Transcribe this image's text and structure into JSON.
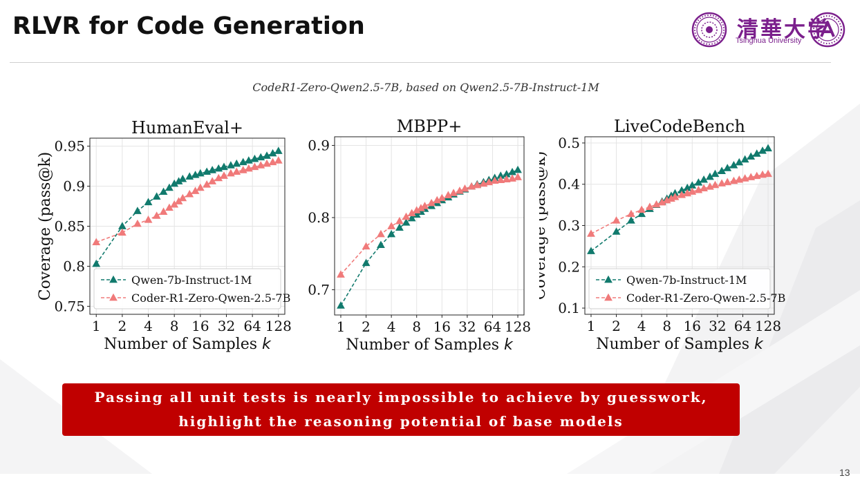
{
  "slide": {
    "title": "RLVR for Code Generation",
    "subtitle": "CodeR1-Zero-Qwen2.5-7B, based on Qwen2.5-7B-Instruct-1M",
    "callout_line1": "Passing all unit tests is nearly impossible to achieve by guesswork,",
    "callout_line2": "highlight the reasoning potential of base models",
    "page_number": "13",
    "logo_text_cn": "清華大学",
    "logo_text_en": "Tsinghua University"
  },
  "colors": {
    "qwen": "#117a6d",
    "coder": "#f07a7a",
    "callout_bg": "#c00000",
    "logo": "#7b1f8c"
  },
  "chart_data": [
    {
      "type": "line",
      "title": "HumanEval+",
      "xlabel": "Number of Samples",
      "xlabel_var": "k",
      "ylabel": "Coverage (pass@k)",
      "x_scale": "log2",
      "x": [
        1,
        2,
        3,
        4,
        5,
        6,
        7,
        8,
        9,
        10,
        12,
        14,
        16,
        19,
        22,
        26,
        30,
        36,
        42,
        50,
        58,
        68,
        80,
        94,
        110,
        128
      ],
      "xticks": [
        1,
        2,
        4,
        8,
        16,
        32,
        64,
        128
      ],
      "ylim": [
        0.74,
        0.96
      ],
      "yticks": [
        0.75,
        0.8,
        0.85,
        0.9,
        0.95
      ],
      "ytick_labels": [
        "0.75",
        "0.8",
        "0.85",
        "0.9",
        "0.95"
      ],
      "grid": true,
      "legend": "bottom-left",
      "series": [
        {
          "name": "Qwen-7b-Instruct-1M",
          "color": "#117a6d",
          "style": "dashed",
          "marker": "triangle",
          "values": [
            0.803,
            0.85,
            0.869,
            0.88,
            0.887,
            0.893,
            0.898,
            0.903,
            0.906,
            0.909,
            0.912,
            0.914,
            0.916,
            0.918,
            0.92,
            0.922,
            0.924,
            0.926,
            0.928,
            0.93,
            0.932,
            0.934,
            0.936,
            0.938,
            0.941,
            0.944
          ]
        },
        {
          "name": "Coder-R1-Zero-Qwen-2.5-7B",
          "color": "#f07a7a",
          "style": "dashed",
          "marker": "triangle",
          "values": [
            0.83,
            0.842,
            0.853,
            0.858,
            0.863,
            0.868,
            0.873,
            0.877,
            0.881,
            0.885,
            0.89,
            0.894,
            0.898,
            0.902,
            0.906,
            0.91,
            0.913,
            0.916,
            0.918,
            0.92,
            0.922,
            0.924,
            0.926,
            0.928,
            0.93,
            0.932
          ]
        }
      ]
    },
    {
      "type": "line",
      "title": "MBPP+",
      "xlabel": "Number of Samples",
      "xlabel_var": "k",
      "ylabel": "",
      "x_scale": "log2",
      "x": [
        1,
        2,
        3,
        4,
        5,
        6,
        7,
        8,
        9,
        10,
        12,
        14,
        16,
        19,
        22,
        26,
        30,
        36,
        42,
        50,
        58,
        68,
        80,
        94,
        110,
        128
      ],
      "xticks": [
        1,
        2,
        4,
        8,
        16,
        32,
        64,
        128
      ],
      "ylim": [
        0.665,
        0.912
      ],
      "yticks": [
        0.7,
        0.8,
        0.9
      ],
      "ytick_labels": [
        "0.7",
        "0.8",
        "0.9"
      ],
      "grid": true,
      "legend": "none",
      "series": [
        {
          "name": "Qwen-7b-Instruct-1M",
          "color": "#117a6d",
          "style": "dashed",
          "marker": "triangle",
          "values": [
            0.678,
            0.737,
            0.762,
            0.777,
            0.786,
            0.793,
            0.799,
            0.804,
            0.808,
            0.812,
            0.816,
            0.82,
            0.824,
            0.828,
            0.832,
            0.836,
            0.839,
            0.843,
            0.846,
            0.849,
            0.852,
            0.855,
            0.858,
            0.86,
            0.863,
            0.866
          ]
        },
        {
          "name": "Coder-R1-Zero-Qwen-2.5-7B",
          "color": "#f07a7a",
          "style": "dashed",
          "marker": "triangle",
          "values": [
            0.721,
            0.76,
            0.777,
            0.788,
            0.795,
            0.801,
            0.806,
            0.81,
            0.813,
            0.816,
            0.82,
            0.824,
            0.827,
            0.831,
            0.834,
            0.837,
            0.84,
            0.843,
            0.845,
            0.847,
            0.849,
            0.851,
            0.852,
            0.853,
            0.854,
            0.856
          ]
        }
      ]
    },
    {
      "type": "line",
      "title": "LiveCodeBench",
      "xlabel": "Number of Samples",
      "xlabel_var": "k",
      "ylabel": "Coverage (pass@k)",
      "x_scale": "log2",
      "x": [
        1,
        2,
        3,
        4,
        5,
        6,
        7,
        8,
        9,
        10,
        12,
        14,
        16,
        19,
        22,
        26,
        30,
        36,
        42,
        50,
        58,
        68,
        80,
        94,
        110,
        128
      ],
      "xticks": [
        1,
        2,
        4,
        8,
        16,
        32,
        64,
        128
      ],
      "ylim": [
        0.085,
        0.515
      ],
      "yticks": [
        0.1,
        0.2,
        0.3,
        0.4,
        0.5
      ],
      "ytick_labels": [
        "0.1",
        "0.2",
        "0.3",
        "0.4",
        "0.5"
      ],
      "grid": true,
      "legend": "bottom-left",
      "series": [
        {
          "name": "Qwen-7b-Instruct-1M",
          "color": "#117a6d",
          "style": "dashed",
          "marker": "triangle",
          "values": [
            0.238,
            0.285,
            0.312,
            0.328,
            0.34,
            0.35,
            0.358,
            0.365,
            0.372,
            0.378,
            0.385,
            0.391,
            0.397,
            0.404,
            0.411,
            0.418,
            0.425,
            0.432,
            0.439,
            0.446,
            0.453,
            0.46,
            0.467,
            0.474,
            0.481,
            0.487
          ]
        },
        {
          "name": "Coder-R1-Zero-Qwen-2.5-7B",
          "color": "#f07a7a",
          "style": "dashed",
          "marker": "triangle",
          "values": [
            0.28,
            0.312,
            0.328,
            0.338,
            0.345,
            0.351,
            0.356,
            0.361,
            0.365,
            0.369,
            0.374,
            0.378,
            0.382,
            0.386,
            0.39,
            0.394,
            0.398,
            0.402,
            0.405,
            0.408,
            0.411,
            0.414,
            0.417,
            0.42,
            0.423,
            0.425
          ]
        }
      ]
    }
  ]
}
